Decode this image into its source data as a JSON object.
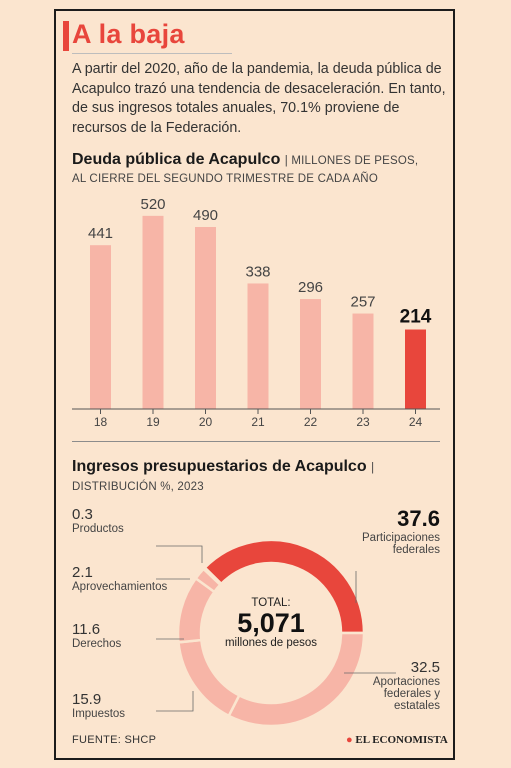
{
  "title": "A la baja",
  "intro": "A partir del 2020, año de la pandemia, la deuda pública de Acapulco trazó una tendencia de desaceleración. En tanto, de sus ingresos totales anuales, 70.1% proviene de recursos de la Federación.",
  "colors": {
    "accent": "#e8463c",
    "bar": "#f7b5a7",
    "highlight": "#e8463c",
    "donut_light": "#f7b5a7"
  },
  "chart_data": [
    {
      "type": "bar",
      "title": "Deuda pública de Acapulco",
      "subtitle": "MILLONES DE PESOS, AL CIERRE DEL SEGUNDO TRIMESTRE DE CADA AÑO",
      "categories": [
        "18",
        "19",
        "20",
        "21",
        "22",
        "23",
        "24"
      ],
      "values": [
        441,
        520,
        490,
        338,
        296,
        257,
        214
      ],
      "highlight_index": 6,
      "ylim": [
        0,
        560
      ]
    },
    {
      "type": "pie",
      "title": "Ingresos presupuestarios de Acapulco",
      "subtitle": "DISTRIBUCIÓN %, 2023",
      "slices": [
        {
          "label": "Participaciones federales",
          "value": 37.6,
          "value_text": "37.6",
          "lines": [
            "Participaciones",
            "federales"
          ]
        },
        {
          "label": "Aportaciones federales y estatales",
          "value": 32.5,
          "value_text": "32.5",
          "lines": [
            "Aportaciones",
            "federales y",
            "estatales"
          ]
        },
        {
          "label": "Impuestos",
          "value": 15.9,
          "value_text": "15.9",
          "lines": [
            "Impuestos"
          ]
        },
        {
          "label": "Derechos",
          "value": 11.6,
          "value_text": "11.6",
          "lines": [
            "Derechos"
          ]
        },
        {
          "label": "Aprovechamientos",
          "value": 2.1,
          "value_text": "2.1",
          "lines": [
            "Aprovechamientos"
          ]
        },
        {
          "label": "Productos",
          "value": 0.3,
          "value_text": "0.3",
          "lines": [
            "Productos"
          ]
        }
      ],
      "center": {
        "label": "TOTAL:",
        "value": "5,071",
        "unit": "millones de pesos"
      }
    }
  ],
  "source": "FUENTE: SHCP",
  "brand": "EL ECONOMISTA"
}
